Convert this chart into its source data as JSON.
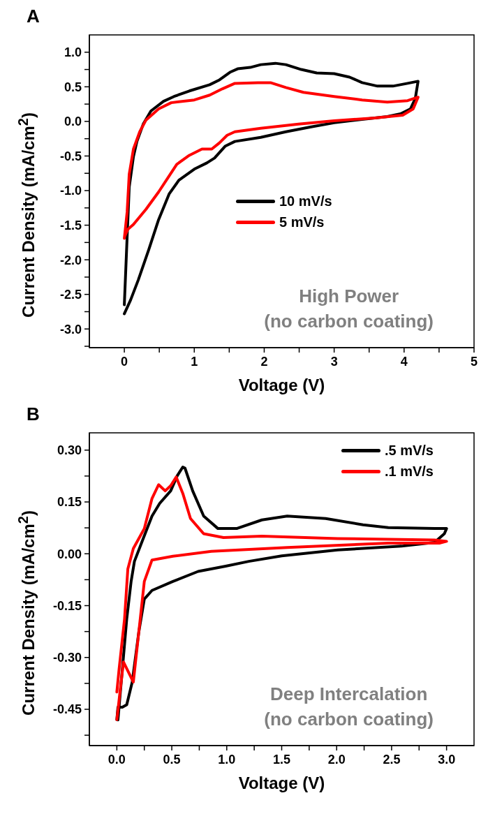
{
  "chart_data": [
    {
      "type": "line",
      "title": "A",
      "xlabel": "Voltage (V)",
      "ylabel": "Current Density (mA/cm$^{2}$)",
      "annotations": [
        "High Power",
        "(no carbon coating)"
      ],
      "legend": "center",
      "marker": "none",
      "line_style": "solid",
      "grid": false,
      "xlim": [
        -0.5,
        5
      ],
      "ylim": [
        -3.27,
        1.25
      ],
      "xticks": [
        0,
        {
          "value": 0.5,
          "label": null
        },
        1,
        {
          "value": 1.5,
          "label": null
        },
        2,
        {
          "value": 2.5,
          "label": null
        },
        3,
        {
          "value": 3.5,
          "label": null
        },
        4,
        {
          "value": 4.5,
          "label": null
        },
        5
      ],
      "yticks": [
        {
          "value": 1,
          "label": "1.0"
        },
        {
          "value": 0.75,
          "label": null
        },
        {
          "value": 0.5,
          "label": "0.5"
        },
        {
          "value": 0.25,
          "label": null
        },
        {
          "value": 0,
          "label": "0.0"
        },
        {
          "value": -0.25,
          "label": null
        },
        {
          "value": -0.5,
          "label": "-0.5"
        },
        {
          "value": -0.75,
          "label": null
        },
        {
          "value": -1,
          "label": "-1.0"
        },
        {
          "value": -1.25,
          "label": null
        },
        {
          "value": -1.5,
          "label": "-1.5"
        },
        {
          "value": -1.75,
          "label": null
        },
        {
          "value": -2,
          "label": "-2.0"
        },
        {
          "value": -2.25,
          "label": null
        },
        {
          "value": -2.5,
          "label": "-2.5"
        },
        {
          "value": -2.75,
          "label": null
        },
        {
          "value": -3,
          "label": "-3.0"
        },
        {
          "value": -3.25,
          "label": null
        }
      ],
      "series": [
        {
          "name": "10 mV/s",
          "color": "#000000",
          "x": [
            0,
            0.04,
            0.07,
            0.13,
            0.18,
            0.27,
            0.38,
            0.56,
            0.71,
            0.93,
            1.22,
            1.36,
            1.51,
            1.62,
            1.8,
            1.95,
            2.16,
            2.31,
            2.53,
            2.75,
            3.0,
            3.22,
            3.4,
            3.62,
            3.84,
            4.05,
            4.2,
            4.16,
            4.09,
            3.95,
            3.76,
            3.4,
            3.0,
            2.67,
            2.31,
            1.95,
            1.58,
            1.44,
            1.29,
            1.18,
            1.0,
            0.78,
            0.64,
            0.49,
            0.35,
            0.2,
            0.09,
            0
          ],
          "values": [
            -2.65,
            -1.67,
            -0.95,
            -0.51,
            -0.29,
            -0.04,
            0.15,
            0.29,
            0.36,
            0.44,
            0.53,
            0.6,
            0.71,
            0.76,
            0.78,
            0.82,
            0.84,
            0.82,
            0.75,
            0.7,
            0.69,
            0.64,
            0.56,
            0.51,
            0.51,
            0.55,
            0.58,
            0.33,
            0.18,
            0.11,
            0.07,
            0.03,
            -0.02,
            -0.08,
            -0.15,
            -0.23,
            -0.29,
            -0.36,
            -0.53,
            -0.6,
            -0.69,
            -0.85,
            -1.05,
            -1.42,
            -1.85,
            -2.29,
            -2.58,
            -2.78
          ]
        },
        {
          "name": "5 mV/s",
          "color": "#ff0000",
          "x": [
            0,
            0.04,
            0.07,
            0.13,
            0.22,
            0.31,
            0.49,
            0.67,
            1.0,
            1.22,
            1.4,
            1.58,
            1.91,
            2.09,
            2.31,
            2.56,
            3.0,
            3.4,
            3.76,
            4.05,
            4.2,
            4.13,
            3.98,
            3.58,
            3.0,
            2.49,
            1.95,
            1.58,
            1.47,
            1.36,
            1.25,
            1.11,
            0.93,
            0.75,
            0.49,
            0.31,
            0.13,
            0.05,
            0.01
          ],
          "values": [
            -1.69,
            -1.31,
            -0.76,
            -0.4,
            -0.15,
            0.02,
            0.18,
            0.27,
            0.31,
            0.38,
            0.47,
            0.55,
            0.56,
            0.56,
            0.49,
            0.42,
            0.36,
            0.31,
            0.28,
            0.3,
            0.35,
            0.18,
            0.09,
            0.05,
            0.01,
            -0.04,
            -0.1,
            -0.15,
            -0.2,
            -0.31,
            -0.4,
            -0.4,
            -0.49,
            -0.62,
            -1.02,
            -1.27,
            -1.49,
            -1.56,
            -1.65
          ]
        }
      ]
    },
    {
      "type": "line",
      "title": "B",
      "xlabel": "Voltage (V)",
      "ylabel": "Current Density (mA/cm$^{2}$)",
      "annotations": [
        "Deep Intercalation",
        "(no carbon coating)"
      ],
      "legend": "top right",
      "marker": "none",
      "line_style": "solid",
      "grid": false,
      "xlim": [
        -0.25,
        3.25
      ],
      "ylim": [
        -0.555,
        0.35
      ],
      "xticks": [
        {
          "value": 0,
          "label": "0.0"
        },
        {
          "value": 0.25,
          "label": null
        },
        {
          "value": 0.5,
          "label": "0.5"
        },
        {
          "value": 0.75,
          "label": null
        },
        {
          "value": 1,
          "label": "1.0"
        },
        {
          "value": 1.25,
          "label": null
        },
        {
          "value": 1.5,
          "label": "1.5"
        },
        {
          "value": 1.75,
          "label": null
        },
        {
          "value": 2,
          "label": "2.0"
        },
        {
          "value": 2.25,
          "label": null
        },
        {
          "value": 2.5,
          "label": "2.5"
        },
        {
          "value": 2.75,
          "label": null
        },
        {
          "value": 3,
          "label": "3.0"
        }
      ],
      "yticks": [
        {
          "value": 0.3,
          "label": "0.30"
        },
        {
          "value": 0.225,
          "label": null
        },
        {
          "value": 0.15,
          "label": "0.15"
        },
        {
          "value": 0.075,
          "label": null
        },
        {
          "value": 0,
          "label": "0.00"
        },
        {
          "value": -0.075,
          "label": null
        },
        {
          "value": -0.15,
          "label": "-0.15"
        },
        {
          "value": -0.225,
          "label": null
        },
        {
          "value": -0.3,
          "label": "-0.30"
        },
        {
          "value": -0.375,
          "label": null
        },
        {
          "value": -0.45,
          "label": "-0.45"
        },
        {
          "value": -0.525,
          "label": null
        }
      ],
      "series": [
        {
          "name": ".5 mV/s",
          "color": "#000000",
          "x": [
            0,
            0.01,
            0.05,
            0.09,
            0.14,
            0.2,
            0.25,
            0.32,
            0.51,
            0.74,
            0.99,
            1.2,
            1.5,
            2.01,
            2.59,
            2.89,
            2.98,
            3.0,
            2.89,
            2.47,
            2.24,
            1.9,
            1.55,
            1.32,
            1.09,
            0.92,
            0.79,
            0.69,
            0.62,
            0.6,
            0.55,
            0.49,
            0.39,
            0.32,
            0.23,
            0.16,
            0.13,
            0.09,
            0.05,
            0.01
          ],
          "values": [
            -0.48,
            -0.444,
            -0.444,
            -0.437,
            -0.371,
            -0.226,
            -0.131,
            -0.106,
            -0.08,
            -0.051,
            -0.036,
            -0.022,
            -0.006,
            0.011,
            0.022,
            0.033,
            0.058,
            0.073,
            0.073,
            0.076,
            0.084,
            0.102,
            0.109,
            0.098,
            0.073,
            0.073,
            0.109,
            0.182,
            0.248,
            0.251,
            0.226,
            0.182,
            0.146,
            0.109,
            0.036,
            -0.022,
            -0.08,
            -0.189,
            -0.335,
            -0.481
          ]
        },
        {
          "name": ".1 mV/s",
          "color": "#ff0000",
          "x": [
            0,
            0.06,
            0.15,
            0.2,
            0.25,
            0.32,
            0.51,
            0.86,
            1.55,
            2.47,
            2.94,
            3.0,
            2.89,
            2.01,
            1.32,
            0.97,
            0.79,
            0.67,
            0.6,
            0.54,
            0.49,
            0.44,
            0.38,
            0.32,
            0.25,
            0.15,
            0.1,
            0.07,
            0.02,
            0
          ],
          "values": [
            -0.48,
            -0.313,
            -0.371,
            -0.226,
            -0.08,
            -0.018,
            -0.007,
            0.007,
            0.018,
            0.031,
            0.031,
            0.036,
            0.04,
            0.044,
            0.051,
            0.047,
            0.058,
            0.102,
            0.175,
            0.222,
            0.197,
            0.182,
            0.2,
            0.16,
            0.073,
            0.015,
            -0.044,
            -0.189,
            -0.335,
            -0.4
          ]
        }
      ]
    }
  ]
}
